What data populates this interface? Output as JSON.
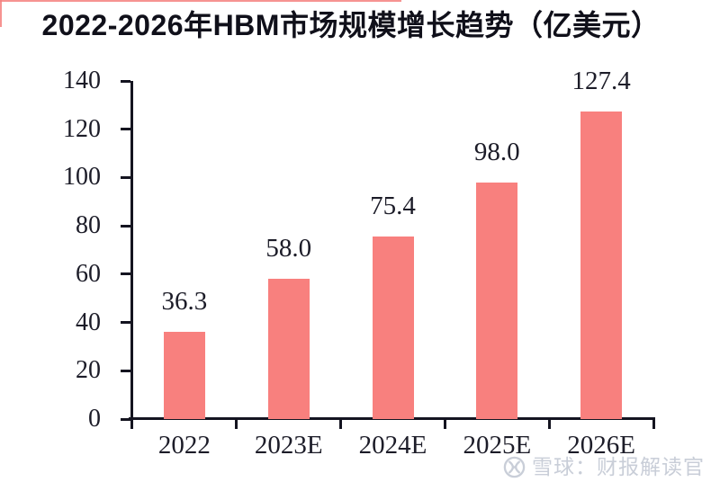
{
  "chart_data": {
    "type": "bar",
    "title": "2022-2026年HBM市场规模增长趋势（亿美元）",
    "categories": [
      "2022",
      "2023E",
      "2024E",
      "2025E",
      "2026E"
    ],
    "values": [
      36.3,
      58.0,
      75.4,
      98.0,
      127.4
    ],
    "value_labels": [
      "36.3",
      "58.0",
      "75.4",
      "98.0",
      "127.4"
    ],
    "xlabel": "",
    "ylabel": "",
    "ylim": [
      0,
      140
    ],
    "ytick_step": 20,
    "ytick_labels": [
      "0",
      "20",
      "40",
      "60",
      "80",
      "100",
      "120",
      "140"
    ],
    "grid": false,
    "legend_position": "none",
    "bar_color": "#F8807E",
    "axis_color": "#141420",
    "label_color": "#1C1C28"
  },
  "watermark": {
    "icon": "snowball-icon",
    "text": "雪球：财报解读官",
    "color": "#C9CED8"
  },
  "decor": {
    "accent_color": "#F4807E"
  }
}
